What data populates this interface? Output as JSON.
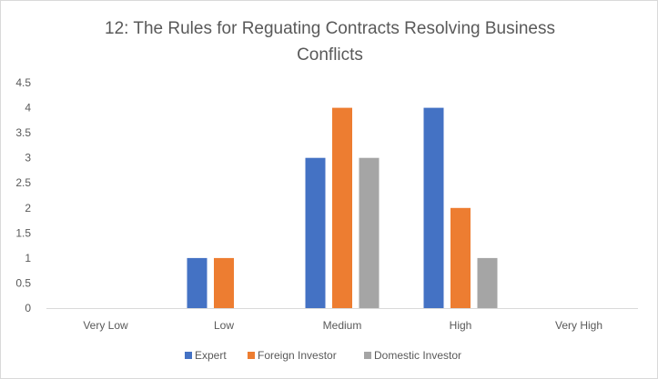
{
  "chart_data": {
    "type": "bar",
    "title": "12: The Rules for Reguating Contracts Resolving Business Conflicts",
    "categories": [
      "Very Low",
      "Low",
      "Medium",
      "High",
      "Very High"
    ],
    "series": [
      {
        "name": "Expert",
        "color": "#4472c4",
        "values": [
          0,
          1,
          3,
          4,
          0
        ]
      },
      {
        "name": "Foreign Investor",
        "color": "#ed7d31",
        "values": [
          0,
          1,
          4,
          2,
          0
        ]
      },
      {
        "name": "Domestic Investor",
        "color": "#a5a5a5",
        "values": [
          0,
          0,
          3,
          1,
          0
        ]
      }
    ],
    "ylim": [
      0,
      4.5
    ],
    "yticks": [
      "0",
      "0.5",
      "1",
      "1.5",
      "2",
      "2.5",
      "3",
      "3.5",
      "4",
      "4.5"
    ],
    "grid": false,
    "legend_position": "bottom"
  }
}
